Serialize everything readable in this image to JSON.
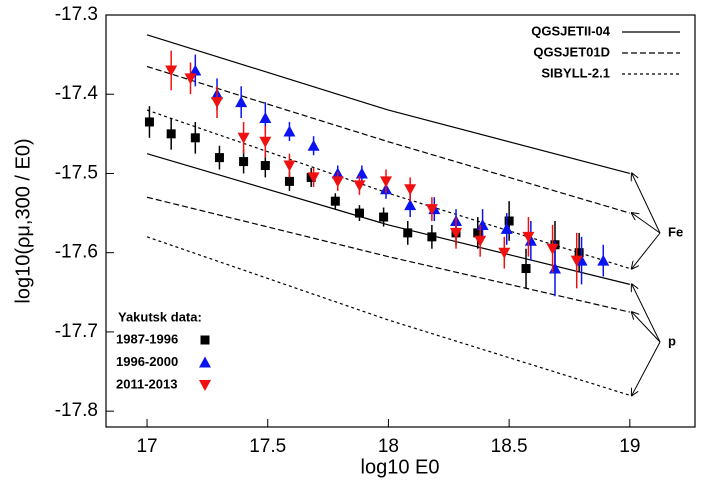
{
  "chart_data": {
    "type": "scatter",
    "xlabel": "log10 E0",
    "ylabel": "log10(ρμ,300 / E0)",
    "xlim": [
      16.83,
      19.27
    ],
    "ylim": [
      -17.82,
      -17.3
    ],
    "xticks": [
      17,
      17.5,
      18,
      18.5,
      19
    ],
    "yticks": [
      -17.3,
      -17.4,
      -17.5,
      -17.6,
      -17.7,
      -17.8
    ],
    "legend_title": "Yakutsk data:",
    "model_x": [
      17,
      18,
      19
    ],
    "models": [
      {
        "name": "QGSJETII-04",
        "dash": "none",
        "fe_values": [
          -17.325,
          -17.42,
          -17.5
        ],
        "p_values": [
          -17.475,
          -17.565,
          -17.64
        ]
      },
      {
        "name": "QGSJET01D",
        "dash": "6,3",
        "fe_values": [
          -17.365,
          -17.46,
          -17.55
        ],
        "p_values": [
          -17.53,
          -17.605,
          -17.675
        ]
      },
      {
        "name": "SIBYLL-2.1",
        "dash": "3,3",
        "fe_values": [
          -17.42,
          -17.525,
          -17.62
        ],
        "p_values": [
          -17.58,
          -17.685,
          -17.78
        ]
      }
    ],
    "annotations": [
      "Fe",
      "p"
    ],
    "series": [
      {
        "name": "1987-1996",
        "marker": "square",
        "color": "#000000",
        "x": [
          17.01,
          17.1,
          17.2,
          17.3,
          17.4,
          17.49,
          17.59,
          17.68,
          17.78,
          17.88,
          17.98,
          18.08,
          18.18,
          18.28,
          18.37,
          18.5,
          18.57,
          18.69,
          18.79
        ],
        "values": [
          -17.435,
          -17.45,
          -17.455,
          -17.48,
          -17.485,
          -17.49,
          -17.51,
          -17.505,
          -17.535,
          -17.55,
          -17.555,
          -17.575,
          -17.58,
          -17.575,
          -17.575,
          -17.56,
          -17.62,
          -17.59,
          -17.6
        ],
        "errors": [
          0.02,
          0.02,
          0.02,
          0.015,
          0.015,
          0.015,
          0.012,
          0.012,
          0.01,
          0.01,
          0.012,
          0.015,
          0.015,
          0.015,
          0.02,
          0.025,
          0.025,
          0.03,
          0.025
        ]
      },
      {
        "name": "1996-2000",
        "marker": "triangle-up",
        "color": "#0a14f0",
        "x": [
          17.2,
          17.29,
          17.39,
          17.49,
          17.59,
          17.69,
          17.79,
          17.89,
          17.99,
          18.09,
          18.19,
          18.28,
          18.39,
          18.49,
          18.59,
          18.69,
          18.8,
          18.89
        ],
        "values": [
          -17.37,
          -17.4,
          -17.41,
          -17.43,
          -17.447,
          -17.465,
          -17.5,
          -17.5,
          -17.52,
          -17.54,
          -17.545,
          -17.56,
          -17.565,
          -17.57,
          -17.585,
          -17.62,
          -17.61,
          -17.61
        ],
        "errors": [
          0.02,
          0.02,
          0.02,
          0.02,
          0.012,
          0.012,
          0.01,
          0.01,
          0.012,
          0.015,
          0.015,
          0.015,
          0.02,
          0.02,
          0.025,
          0.035,
          0.03,
          0.02
        ]
      },
      {
        "name": "2011-2013",
        "marker": "triangle-down",
        "color": "#f01010",
        "x": [
          17.1,
          17.18,
          17.29,
          17.4,
          17.49,
          17.59,
          17.69,
          17.79,
          17.88,
          17.99,
          18.09,
          18.18,
          18.28,
          18.38,
          18.48,
          18.58,
          18.68,
          18.78
        ],
        "values": [
          -17.37,
          -17.38,
          -17.41,
          -17.455,
          -17.46,
          -17.49,
          -17.505,
          -17.51,
          -17.515,
          -17.51,
          -17.52,
          -17.545,
          -17.575,
          -17.585,
          -17.6,
          -17.58,
          -17.595,
          -17.61
        ],
        "errors": [
          0.025,
          0.02,
          0.02,
          0.02,
          0.02,
          0.015,
          0.012,
          0.012,
          0.012,
          0.015,
          0.015,
          0.015,
          0.02,
          0.02,
          0.02,
          0.025,
          0.03,
          0.035
        ]
      }
    ]
  }
}
